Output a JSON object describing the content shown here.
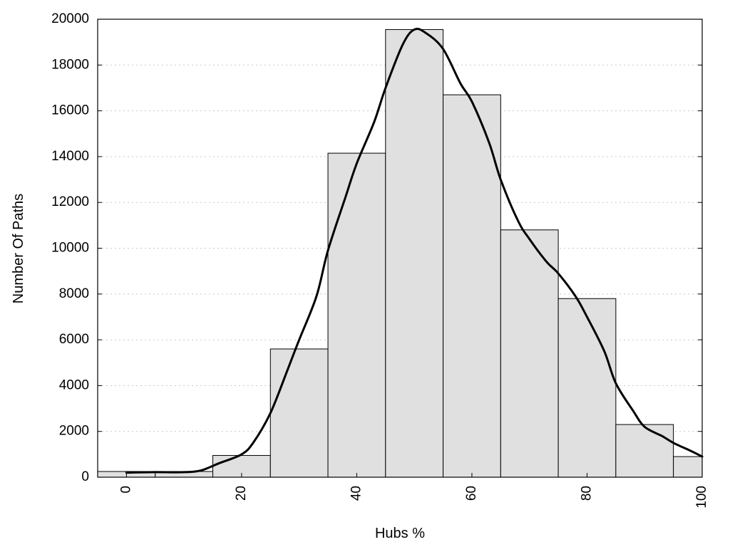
{
  "chart_data": {
    "type": "bar",
    "xlabel": "Hubs %",
    "ylabel": "Number Of Paths",
    "xlim": [
      -5,
      100
    ],
    "ylim": [
      0,
      20000
    ],
    "x_ticks": [
      "0",
      "20",
      "40",
      "60",
      "80",
      "100"
    ],
    "y_ticks": [
      "0",
      "2000",
      "4000",
      "6000",
      "8000",
      "10000",
      "12000",
      "14000",
      "16000",
      "18000",
      "20000"
    ],
    "grid": "horizontal dotted",
    "bars": {
      "bin_centers": [
        0,
        10,
        20,
        30,
        40,
        50,
        60,
        70,
        80,
        90,
        100
      ],
      "bin_width": 10,
      "values": [
        250,
        250,
        950,
        5600,
        14150,
        19550,
        16700,
        10800,
        7800,
        2300,
        900
      ]
    },
    "curve": {
      "x": [
        0,
        5,
        10,
        13,
        16,
        20,
        22,
        25,
        28,
        30,
        33,
        35,
        38,
        40,
        43,
        45,
        48,
        50,
        52,
        55,
        58,
        60,
        63,
        65,
        68,
        70,
        73,
        75,
        78,
        80,
        83,
        85,
        88,
        90,
        93,
        95,
        98,
        100
      ],
      "y": [
        200,
        220,
        220,
        300,
        600,
        1000,
        1500,
        2800,
        4700,
        6000,
        7900,
        9900,
        12200,
        13700,
        15500,
        17000,
        18900,
        19550,
        19400,
        18700,
        17200,
        16400,
        14600,
        13000,
        11200,
        10400,
        9400,
        8900,
        7900,
        7000,
        5500,
        4100,
        2900,
        2200,
        1800,
        1500,
        1150,
        900
      ]
    },
    "colors": {
      "bar_fill": "#e0e0e0",
      "bar_stroke": "#000000",
      "curve": "#000000",
      "grid": "#c8c8c8"
    }
  }
}
